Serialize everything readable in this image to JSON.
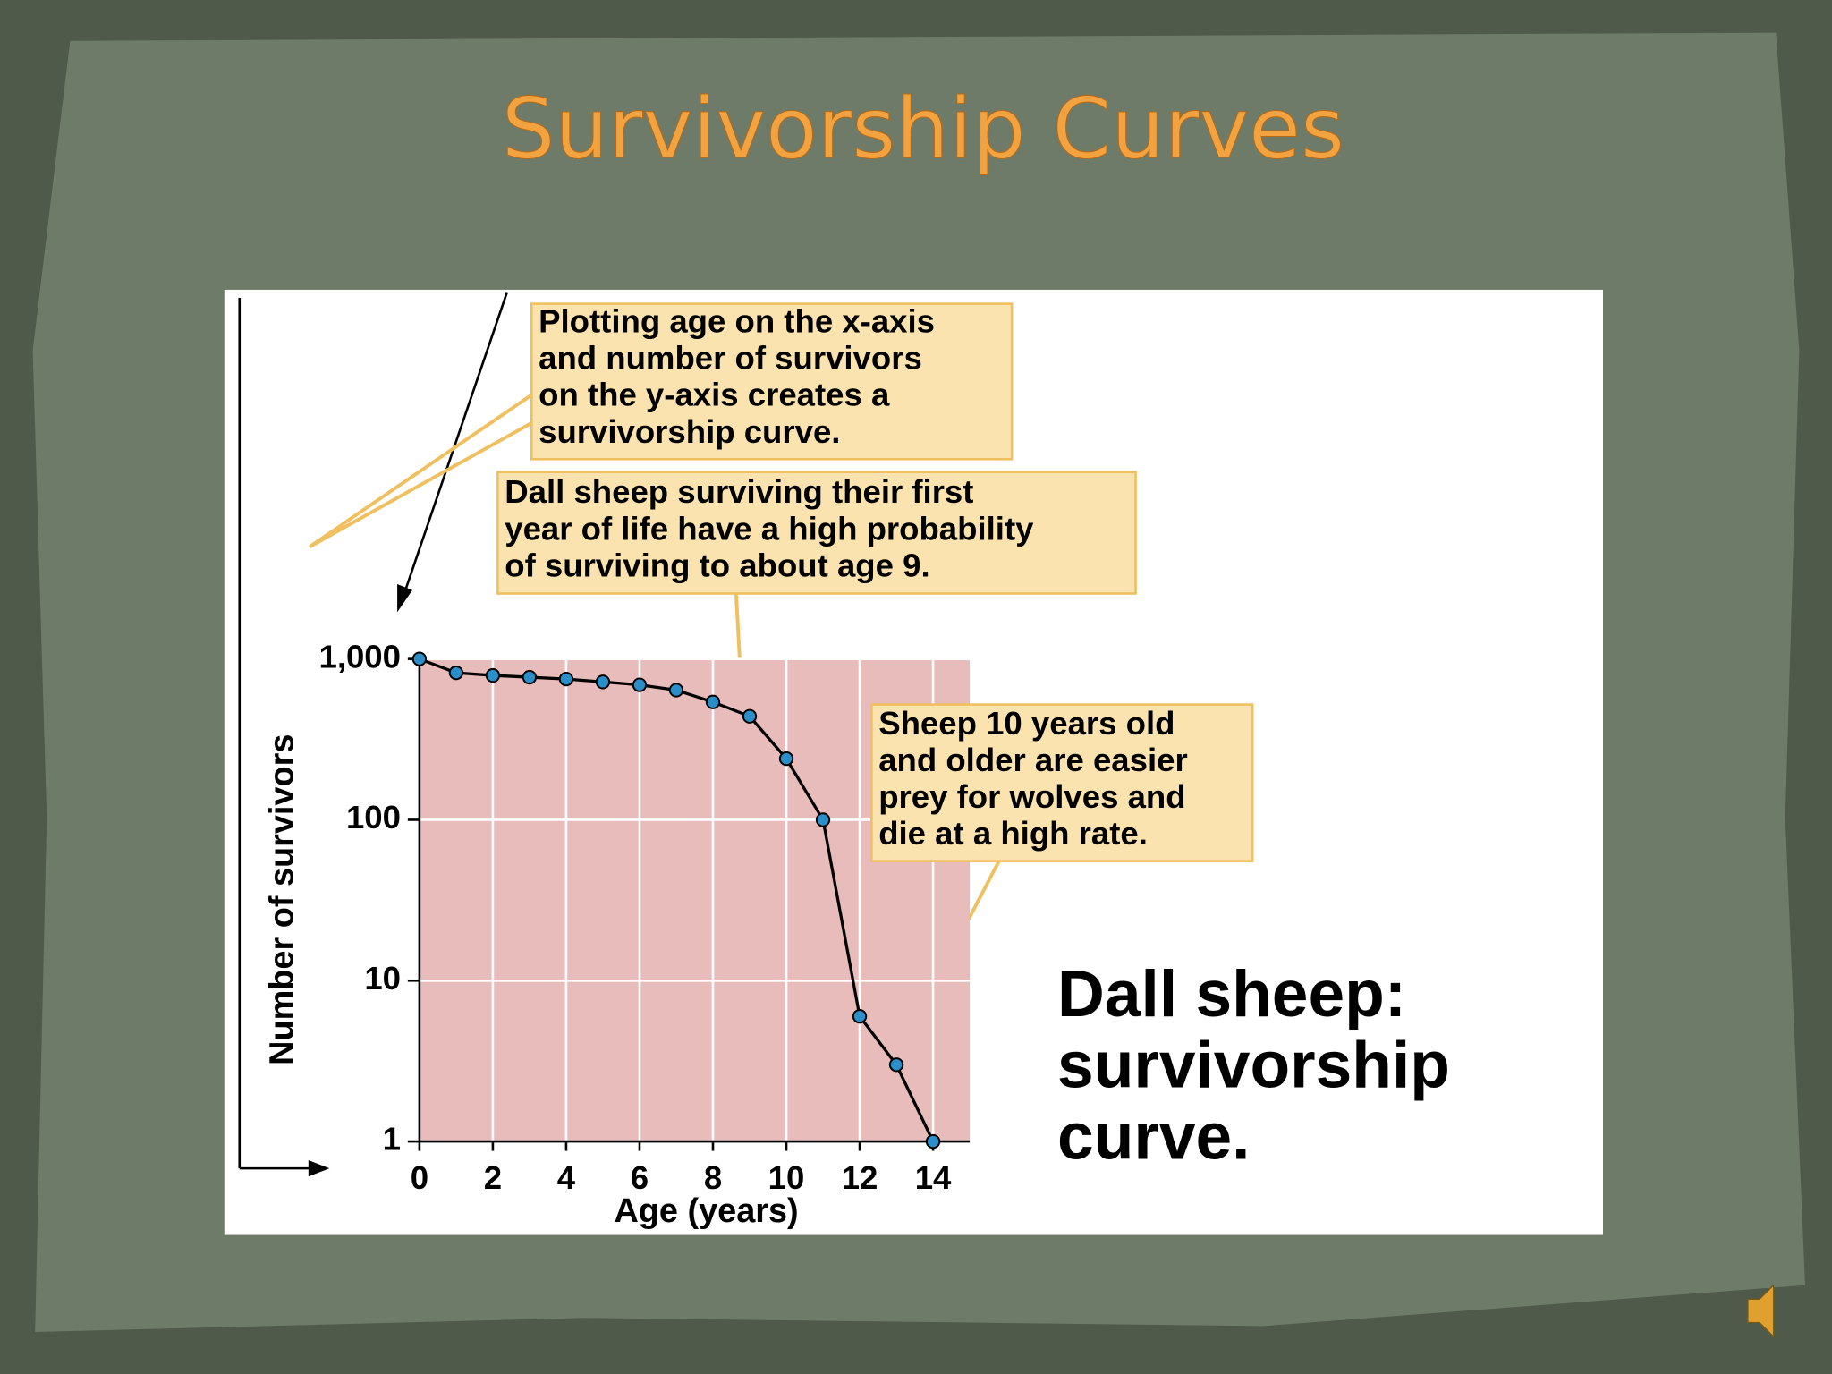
{
  "slide": {
    "title": "Survivorship Curves"
  },
  "chart_data": {
    "type": "line",
    "x_label": "Age (years)",
    "y_label": "Number of survivors",
    "x": [
      0,
      1,
      2,
      3,
      4,
      5,
      6,
      7,
      8,
      9,
      10,
      11,
      12,
      13,
      14
    ],
    "values": [
      1000,
      820,
      790,
      770,
      750,
      720,
      690,
      640,
      540,
      440,
      240,
      100,
      6,
      3,
      1
    ],
    "color": "#000000",
    "marker_color": "#2a8fc8",
    "xlim": [
      0,
      15
    ],
    "xticks": [
      0,
      2,
      4,
      6,
      8,
      10,
      12,
      14
    ],
    "ylim": [
      1,
      1000
    ],
    "yticks": [
      1,
      10,
      100,
      {
        "value": 1000,
        "label": "1,000"
      }
    ],
    "log_y": true,
    "grid": true,
    "annotations": [
      {
        "lines": [
          "Plotting age on the x-axis",
          "and number of survivors",
          "on the y-axis creates a",
          "survivorship curve."
        ]
      },
      {
        "lines": [
          "Dall sheep surviving their first",
          "year of life have a high probability",
          "of surviving to about age 9."
        ]
      },
      {
        "lines": [
          "Sheep 10 years old",
          "and older are easier",
          "prey for wolves and",
          "die at a high rate."
        ]
      }
    ],
    "caption": {
      "lines": [
        "Dall sheep:",
        "survivorship",
        "curve."
      ]
    }
  }
}
